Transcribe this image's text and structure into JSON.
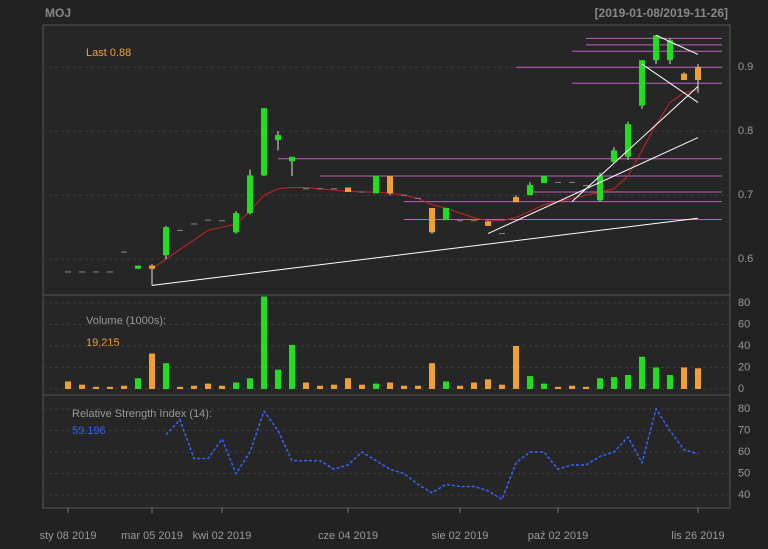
{
  "chart_data": {
    "type": "candlestick",
    "title": "MOJ",
    "range_label": "[2019-01-08/2019-11-26]",
    "last_label": "Last",
    "volume_title": "Volume (1000s):",
    "volume_last_label": "19,215",
    "rsi_title": "Relative Strength Index (14):",
    "x": [
      "2019-01-08",
      "2019-01-15",
      "2019-01-22",
      "2019-01-29",
      "2019-02-05",
      "2019-02-19",
      "2019-03-05",
      "2019-03-12",
      "2019-03-19",
      "2019-03-26",
      "2019-03-29",
      "2019-04-02",
      "2019-04-09",
      "2019-04-16",
      "2019-04-24",
      "2019-04-30",
      "2019-05-07",
      "2019-05-14",
      "2019-05-21",
      "2019-05-28",
      "2019-06-04",
      "2019-06-11",
      "2019-06-18",
      "2019-06-25",
      "2019-07-02",
      "2019-07-09",
      "2019-07-16",
      "2019-07-23",
      "2019-08-02",
      "2019-08-09",
      "2019-08-16",
      "2019-08-23",
      "2019-08-30",
      "2019-09-06",
      "2019-09-13",
      "2019-10-02",
      "2019-10-09",
      "2019-10-16",
      "2019-10-23",
      "2019-10-30",
      "2019-11-06",
      "2019-11-12",
      "2019-11-15",
      "2019-11-19",
      "2019-11-22",
      "2019-11-26"
    ],
    "open": [
      0.58,
      0.58,
      0.58,
      0.58,
      0.611,
      0.585,
      0.59,
      0.606,
      0.645,
      0.655,
      0.661,
      0.66,
      0.642,
      0.672,
      0.731,
      0.786,
      0.753,
      0.71,
      0.71,
      0.71,
      0.712,
      0.705,
      0.703,
      0.73,
      0.7,
      0.695,
      0.68,
      0.661,
      0.66,
      0.66,
      0.659,
      0.64,
      0.697,
      0.7,
      0.719,
      0.72,
      0.72,
      0.715,
      0.692,
      0.752,
      0.76,
      0.84,
      0.911,
      0.911,
      0.89,
      0.9
    ],
    "high": [
      0.58,
      0.58,
      0.58,
      0.58,
      0.611,
      0.59,
      0.592,
      0.652,
      0.645,
      0.655,
      0.661,
      0.66,
      0.675,
      0.74,
      0.836,
      0.8,
      0.76,
      0.71,
      0.71,
      0.71,
      0.712,
      0.705,
      0.73,
      0.73,
      0.7,
      0.695,
      0.68,
      0.68,
      0.66,
      0.66,
      0.66,
      0.64,
      0.7,
      0.72,
      0.73,
      0.72,
      0.72,
      0.715,
      0.735,
      0.775,
      0.815,
      0.911,
      0.95,
      0.945,
      0.892,
      0.905
    ],
    "low": [
      0.58,
      0.58,
      0.58,
      0.58,
      0.611,
      0.585,
      0.559,
      0.6,
      0.645,
      0.655,
      0.661,
      0.66,
      0.64,
      0.67,
      0.73,
      0.77,
      0.73,
      0.71,
      0.71,
      0.71,
      0.705,
      0.705,
      0.703,
      0.7,
      0.7,
      0.695,
      0.64,
      0.661,
      0.66,
      0.66,
      0.652,
      0.64,
      0.689,
      0.7,
      0.719,
      0.72,
      0.72,
      0.715,
      0.69,
      0.75,
      0.755,
      0.835,
      0.905,
      0.905,
      0.88,
      0.86
    ],
    "close": [
      0.58,
      0.58,
      0.58,
      0.58,
      0.611,
      0.59,
      0.585,
      0.65,
      0.645,
      0.655,
      0.661,
      0.66,
      0.672,
      0.731,
      0.836,
      0.794,
      0.76,
      0.71,
      0.71,
      0.71,
      0.705,
      0.705,
      0.73,
      0.703,
      0.7,
      0.695,
      0.642,
      0.68,
      0.66,
      0.66,
      0.652,
      0.64,
      0.689,
      0.716,
      0.73,
      0.72,
      0.72,
      0.715,
      0.731,
      0.77,
      0.811,
      0.911,
      0.95,
      0.942,
      0.88,
      0.88
    ],
    "volume": [
      7,
      4,
      2,
      2,
      3,
      10,
      33,
      24,
      2,
      3,
      5,
      3,
      6,
      10,
      86,
      18,
      41,
      6,
      3,
      4,
      10,
      4,
      5,
      6,
      3,
      3,
      24,
      7,
      3,
      6,
      9,
      4,
      40,
      12,
      5,
      2,
      3,
      2,
      10,
      11,
      13,
      30,
      20,
      13,
      20,
      19.215
    ],
    "ma": [
      null,
      null,
      null,
      null,
      null,
      null,
      0.585,
      0.6,
      0.615,
      0.63,
      0.645,
      0.65,
      0.655,
      0.675,
      0.7,
      0.71,
      0.712,
      0.712,
      0.71,
      0.708,
      0.706,
      0.705,
      0.705,
      0.703,
      0.7,
      0.695,
      0.685,
      0.68,
      0.672,
      0.665,
      0.66,
      0.66,
      0.665,
      0.675,
      0.685,
      0.69,
      0.695,
      0.7,
      0.705,
      0.71,
      0.73,
      0.77,
      0.81,
      0.845,
      0.86,
      0.865
    ],
    "rsi": [
      null,
      null,
      null,
      null,
      null,
      null,
      null,
      68,
      75,
      57,
      57,
      66,
      50,
      60,
      79,
      70,
      56,
      56,
      56,
      52,
      54,
      60,
      56,
      52,
      50,
      45,
      41,
      45,
      44,
      44,
      42,
      38,
      55,
      60,
      60,
      52,
      54,
      54,
      58,
      60,
      67,
      55,
      80,
      70,
      61,
      59.196
    ],
    "levels": [
      {
        "value": 0.945,
        "from": "2019-10-16"
      },
      {
        "value": 0.935,
        "from": "2019-10-16"
      },
      {
        "value": 0.925,
        "from": "2019-10-09"
      },
      {
        "value": 0.9,
        "from": "2019-08-30"
      },
      {
        "value": 0.875,
        "from": "2019-10-09"
      },
      {
        "value": 0.757,
        "from": "2019-04-30"
      },
      {
        "value": 0.73,
        "from": "2019-05-21"
      },
      {
        "value": 0.705,
        "from": "2019-09-06"
      },
      {
        "value": 0.69,
        "from": "2019-07-02"
      },
      {
        "value": 0.662,
        "from": "2019-07-02"
      }
    ],
    "trendlines": [
      {
        "x1": "2019-03-05",
        "y1": 0.559,
        "x2": "2019-11-26",
        "y2": 0.664
      },
      {
        "x1": "2019-08-16",
        "y1": 0.64,
        "x2": "2019-11-26",
        "y2": 0.79
      },
      {
        "x1": "2019-10-09",
        "y1": 0.69,
        "x2": "2019-11-26",
        "y2": 0.87
      },
      {
        "x1": "2019-11-12",
        "y1": 0.905,
        "x2": "2019-11-26",
        "y2": 0.845
      },
      {
        "x1": "2019-11-15",
        "y1": 0.95,
        "x2": "2019-11-26",
        "y2": 0.92
      }
    ],
    "up_color": "#22dd22",
    "down_color": "#f0a030",
    "flat_color": "#888888",
    "ma_color": "#cc2222",
    "level_color": "#c060c0",
    "trend_color": "#ffffff",
    "rsi_color": "#3366ff",
    "ylim": [
      0.544,
      0.966
    ],
    "yticks": [
      0.6,
      0.7,
      0.8,
      0.9
    ],
    "volume_ylim": [
      -5.6,
      87.4
    ],
    "volume_yticks": [
      0,
      20,
      40,
      60,
      80
    ],
    "rsi_ylim": [
      34,
      86.5
    ],
    "rsi_yticks": [
      40,
      50,
      60,
      70,
      80
    ],
    "xticks": [
      {
        "value": "2019-01-08",
        "label": "sty 08 2019"
      },
      {
        "value": "2019-03-05",
        "label": "mar 05 2019"
      },
      {
        "value": "2019-04-02",
        "label": "kwi 02 2019"
      },
      {
        "value": "2019-06-04",
        "label": "cze 04 2019"
      },
      {
        "value": "2019-08-02",
        "label": "sie 02 2019"
      },
      {
        "value": "2019-10-02",
        "label": "paź 02 2019"
      },
      {
        "value": "2019-11-26",
        "label": "lis 26 2019"
      }
    ],
    "grid": true
  }
}
